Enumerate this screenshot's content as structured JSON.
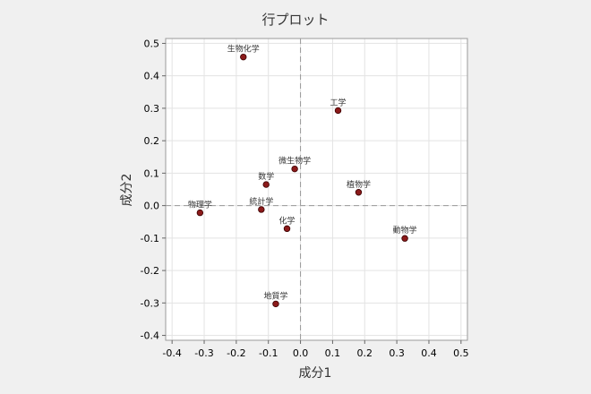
{
  "chart_data": {
    "type": "scatter",
    "title": "行プロット",
    "xlabel": "成分1",
    "ylabel": "成分2",
    "xlim": [
      -0.42,
      0.52
    ],
    "ylim": [
      -0.415,
      0.515
    ],
    "xticks": [
      -0.4,
      -0.3,
      -0.2,
      -0.1,
      0.0,
      0.1,
      0.2,
      0.3,
      0.4,
      0.5
    ],
    "xtick_labels": [
      "-0.4",
      "-0.3",
      "-0.2",
      "-0.1",
      "0.0",
      "0.1",
      "0.2",
      "0.3",
      "0.4",
      "0.5"
    ],
    "yticks": [
      -0.4,
      -0.3,
      -0.2,
      -0.1,
      0.0,
      0.1,
      0.2,
      0.3,
      0.4,
      0.5
    ],
    "ytick_labels": [
      "-0.4",
      "-0.3",
      "-0.2",
      "-0.1",
      "0.0",
      "0.1",
      "0.2",
      "0.3",
      "0.4",
      "0.5"
    ],
    "grid": true,
    "reference_lines": {
      "x": 0,
      "y": 0
    },
    "points": [
      {
        "label": "生物化学",
        "x": -0.178,
        "y": 0.458
      },
      {
        "label": "工学",
        "x": 0.117,
        "y": 0.293
      },
      {
        "label": "微生物学",
        "x": -0.018,
        "y": 0.113
      },
      {
        "label": "数学",
        "x": -0.107,
        "y": 0.065
      },
      {
        "label": "植物学",
        "x": 0.181,
        "y": 0.041
      },
      {
        "label": "物理学",
        "x": -0.313,
        "y": -0.022
      },
      {
        "label": "統計学",
        "x": -0.122,
        "y": -0.012
      },
      {
        "label": "化学",
        "x": -0.042,
        "y": -0.071
      },
      {
        "label": "動物学",
        "x": 0.325,
        "y": -0.101
      },
      {
        "label": "地質学",
        "x": -0.077,
        "y": -0.303
      }
    ],
    "colors": {
      "point_fill": "#8b1a1a",
      "point_stroke": "#3a0000",
      "grid": "#e3e3e3",
      "reference": "#999999",
      "plot_bg": "#ffffff",
      "page_bg": "#f0f0f0"
    }
  }
}
